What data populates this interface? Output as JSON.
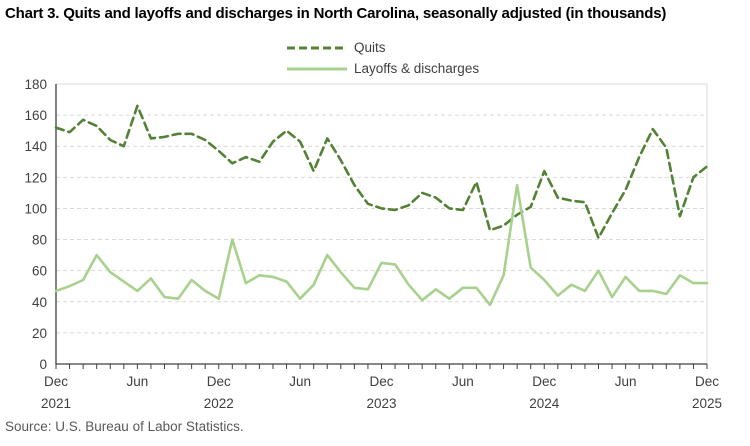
{
  "title": "Chart 3. Quits and layoffs and discharges in North Carolina, seasonally adjusted (in thousands)",
  "source": "Source: U.S. Bureau of Labor Statistics.",
  "colors": {
    "quits": "#538135",
    "layoffs": "#a9d18e",
    "gridline": "#d9d9d9",
    "axis": "#404040"
  },
  "legend": [
    {
      "label": "Quits",
      "color": "#538135",
      "dash": true
    },
    {
      "label": "Layoffs & discharges",
      "color": "#a9d18e",
      "dash": false
    }
  ],
  "chart_data": {
    "type": "line",
    "title": "Chart 3. Quits and layoffs and discharges in North Carolina, seasonally adjusted (in thousands)",
    "xlabel": "",
    "ylabel": "",
    "ylim": [
      0,
      180
    ],
    "y_ticks": [
      0,
      20,
      40,
      60,
      80,
      100,
      120,
      140,
      160,
      180
    ],
    "grid": "horizontal-dashed",
    "legend_position": "top-center",
    "x": [
      "Dec 2021",
      "Jan 2022",
      "Feb 2022",
      "Mar 2022",
      "Apr 2022",
      "May 2022",
      "Jun 2022",
      "Jul 2022",
      "Aug 2022",
      "Sep 2022",
      "Oct 2022",
      "Nov 2022",
      "Dec 2022",
      "Jan 2023",
      "Feb 2023",
      "Mar 2023",
      "Apr 2023",
      "May 2023",
      "Jun 2023",
      "Jul 2023",
      "Aug 2023",
      "Sep 2023",
      "Oct 2023",
      "Nov 2023",
      "Dec 2023",
      "Jan 2024",
      "Feb 2024",
      "Mar 2024",
      "Apr 2024",
      "May 2024",
      "Jun 2024",
      "Jul 2024",
      "Aug 2024",
      "Sep 2024",
      "Oct 2024",
      "Nov 2024",
      "Dec 2024",
      "Jan 2025",
      "Feb 2025",
      "Mar 2025",
      "Apr 2025",
      "May 2025",
      "Jun 2025",
      "Jul 2025",
      "Aug 2025",
      "Sep 2025",
      "Oct 2025",
      "Nov 2025",
      "Dec 2025"
    ],
    "x_major_ticks": [
      {
        "label": "Dec",
        "year": "2021",
        "index": 0
      },
      {
        "label": "Jun",
        "year": "",
        "index": 6
      },
      {
        "label": "Dec",
        "year": "2022",
        "index": 12
      },
      {
        "label": "Jun",
        "year": "",
        "index": 18
      },
      {
        "label": "Dec",
        "year": "2023",
        "index": 24
      },
      {
        "label": "Jun",
        "year": "",
        "index": 30
      },
      {
        "label": "Dec",
        "year": "2024",
        "index": 36
      },
      {
        "label": "Jun",
        "year": "",
        "index": 42
      },
      {
        "label": "Dec",
        "year": "2025",
        "index": 48
      }
    ],
    "series": [
      {
        "name": "Quits",
        "color": "#538135",
        "style": "dashed",
        "values": [
          152,
          149,
          157,
          153,
          144,
          140,
          166,
          145,
          146,
          148,
          148,
          144,
          137,
          129,
          133,
          130,
          143,
          150,
          143,
          124,
          145,
          131,
          115,
          103,
          100,
          99,
          102,
          110,
          107,
          100,
          99,
          117,
          86,
          89,
          96,
          101,
          124,
          107,
          105,
          104,
          81,
          97,
          112,
          133,
          151,
          139,
          95,
          120,
          127
        ]
      },
      {
        "name": "Layoffs & discharges",
        "color": "#a9d18e",
        "style": "solid",
        "values": [
          47,
          50,
          54,
          70,
          59,
          53,
          47,
          55,
          43,
          42,
          54,
          47,
          42,
          80,
          52,
          57,
          56,
          53,
          42,
          51,
          70,
          59,
          49,
          48,
          65,
          64,
          51,
          41,
          48,
          42,
          49,
          49,
          38,
          57,
          115,
          62,
          54,
          44,
          51,
          47,
          60,
          43,
          56,
          47,
          47,
          45,
          57,
          52,
          52
        ]
      }
    ]
  }
}
